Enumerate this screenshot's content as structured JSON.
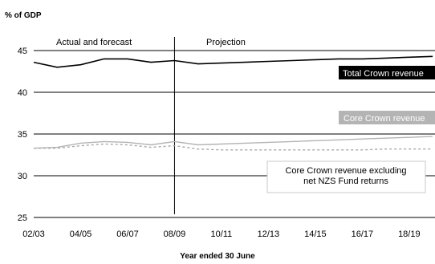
{
  "chart_data": {
    "type": "line",
    "ylabel": "% of GDP",
    "xlabel": "Year ended 30 June",
    "ylim": [
      25,
      45
    ],
    "yticks": [
      25,
      30,
      35,
      40,
      45
    ],
    "x_tick_labels": [
      "02/03",
      "04/05",
      "06/07",
      "08/09",
      "10/11",
      "12/13",
      "14/15",
      "16/17",
      "18/19"
    ],
    "x_range": [
      "02/03",
      "19/20"
    ],
    "grid": "horizontal",
    "annotations": [
      {
        "text": "Actual and forecast"
      },
      {
        "text": "Projection"
      }
    ],
    "divider_at": "08/09",
    "colors": {
      "total": "#000000",
      "core": "#b4b4b4",
      "core_excl": "#a8a8a8",
      "grid": "#000000"
    },
    "x": [
      "02/03",
      "03/04",
      "04/05",
      "05/06",
      "06/07",
      "07/08",
      "08/09",
      "09/10",
      "10/11",
      "11/12",
      "12/13",
      "13/14",
      "14/15",
      "15/16",
      "16/17",
      "17/18",
      "18/19",
      "19/20"
    ],
    "series": [
      {
        "name": "Total Crown revenue",
        "style": "solid",
        "values": [
          43.6,
          43.0,
          43.3,
          44.0,
          44.0,
          43.6,
          43.8,
          43.4,
          43.5,
          43.6,
          43.7,
          43.8,
          43.9,
          44.0,
          44.0,
          44.1,
          44.2,
          44.3
        ]
      },
      {
        "name": "Core Crown revenue",
        "style": "solid",
        "values": [
          33.3,
          33.4,
          33.9,
          34.1,
          34.0,
          33.7,
          34.1,
          33.7,
          33.8,
          33.9,
          34.0,
          34.1,
          34.2,
          34.3,
          34.4,
          34.5,
          34.6,
          34.7
        ]
      },
      {
        "name": "Core Crown revenue excluding net NZS Fund returns",
        "style": "dashed",
        "values": [
          33.3,
          33.3,
          33.6,
          33.8,
          33.7,
          33.4,
          33.6,
          33.2,
          33.1,
          33.1,
          33.1,
          33.1,
          33.1,
          33.1,
          33.1,
          33.2,
          33.2,
          33.2
        ]
      }
    ],
    "series_labels": [
      {
        "lines": [
          "Total Crown revenue"
        ]
      },
      {
        "lines": [
          "Core Crown revenue"
        ]
      },
      {
        "lines": [
          "Core Crown revenue excluding",
          "net NZS Fund returns"
        ]
      }
    ]
  }
}
